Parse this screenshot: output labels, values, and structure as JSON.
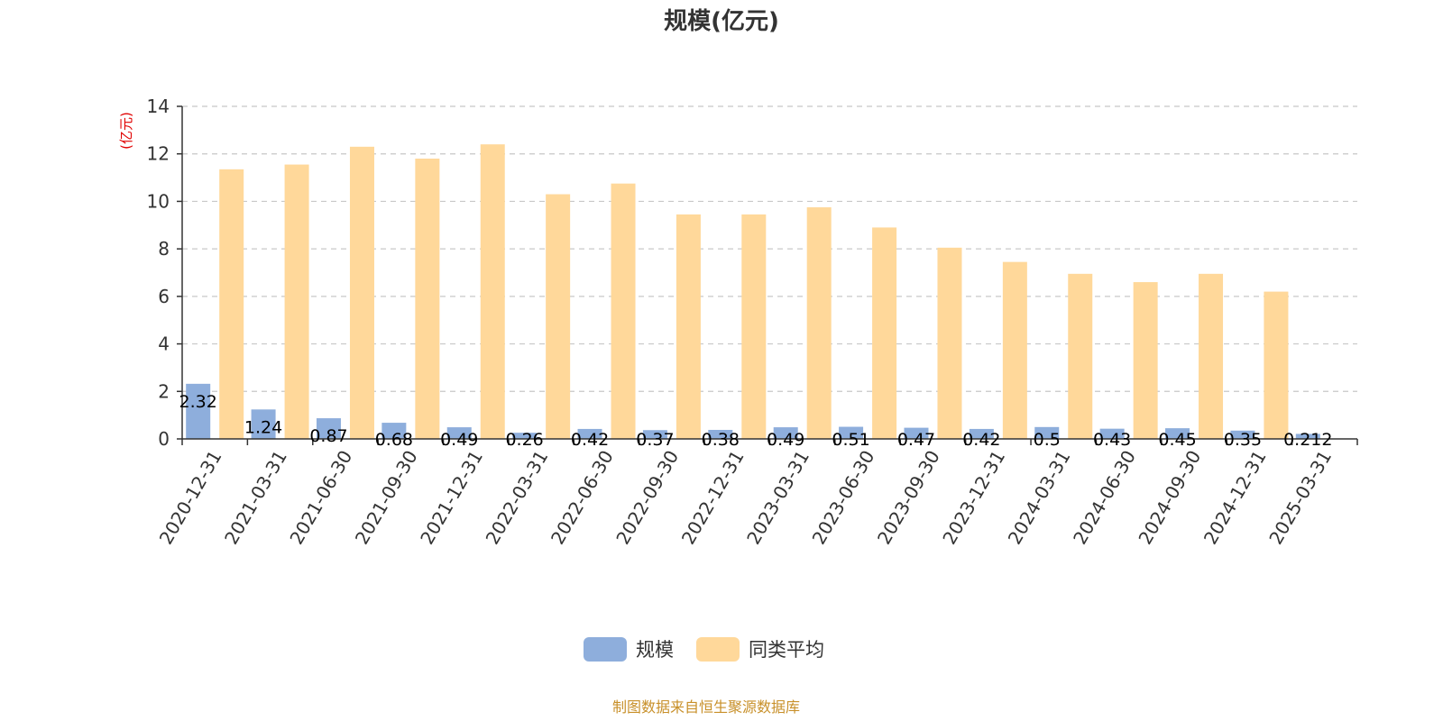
{
  "chart_data": {
    "type": "bar",
    "title": "规模(亿元)",
    "ylabel": "(亿元)",
    "xlabel": "",
    "ylim": [
      0,
      14
    ],
    "yticks": [
      0,
      2,
      4,
      6,
      8,
      10,
      12,
      14
    ],
    "grid": true,
    "legend_position": "bottom",
    "categories": [
      "2020-12-31",
      "2021-03-31",
      "2021-06-30",
      "2021-09-30",
      "2021-12-31",
      "2022-03-31",
      "2022-06-30",
      "2022-09-30",
      "2022-12-31",
      "2023-03-31",
      "2023-06-30",
      "2023-09-30",
      "2023-12-31",
      "2024-03-31",
      "2024-06-30",
      "2024-09-30",
      "2024-12-31",
      "2025-03-31"
    ],
    "series": [
      {
        "name": "规模",
        "color": "#8eaedc",
        "values": [
          2.32,
          1.24,
          0.87,
          0.68,
          0.49,
          0.26,
          0.42,
          0.37,
          0.38,
          0.49,
          0.51,
          0.47,
          0.42,
          0.5,
          0.43,
          0.45,
          0.35,
          0.212
        ],
        "labels": [
          "2.32",
          "1.24",
          "0.87",
          "0.68",
          "0.49",
          "0.26",
          "0.42",
          "0.37",
          "0.38",
          "0.49",
          "0.51",
          "0.47",
          "0.42",
          "0.5",
          "0.43",
          "0.45",
          "0.35",
          "0.212"
        ]
      },
      {
        "name": "同类平均",
        "color": "#ffd89a",
        "values": [
          11.35,
          11.55,
          12.3,
          11.8,
          12.4,
          10.3,
          10.75,
          9.45,
          9.45,
          9.75,
          8.9,
          8.05,
          7.45,
          6.95,
          6.6,
          6.95,
          6.2,
          null
        ]
      }
    ]
  },
  "footer": {
    "source": "制图数据来自恒生聚源数据库"
  }
}
